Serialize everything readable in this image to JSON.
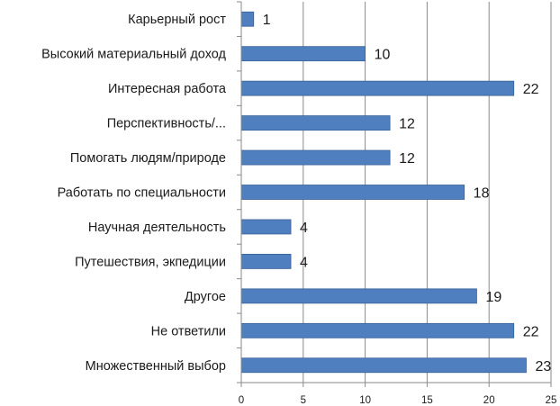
{
  "chart_data": {
    "type": "bar",
    "orientation": "horizontal",
    "title": "",
    "xlabel": "",
    "ylabel": "",
    "xlim": [
      0,
      25
    ],
    "ticks": [
      0,
      5,
      10,
      15,
      20,
      25
    ],
    "grid": true,
    "legend": "none",
    "bar_color": "#4f7fbe",
    "bar_border_color": "#3a6299",
    "categories": [
      "Карьерный рост",
      "Высокий материальный доход",
      "Интересная работа",
      "Перспективность/...",
      "Помогать людям/природе",
      "Работать по специальности",
      "Научная деятельность",
      "Путешествия, экпедиции",
      "Другое",
      "Не ответили",
      "Множественный выбор"
    ],
    "values": [
      1,
      10,
      22,
      12,
      12,
      18,
      4,
      4,
      19,
      22,
      23
    ]
  }
}
